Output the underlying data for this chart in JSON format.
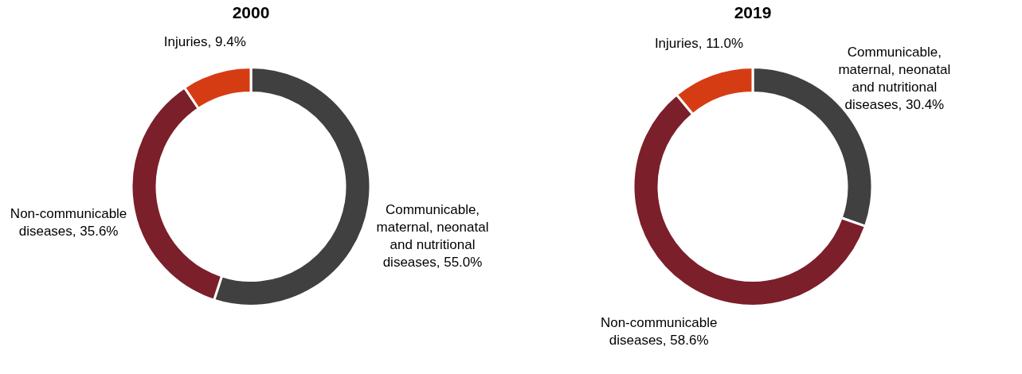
{
  "chart_data": [
    {
      "type": "donut",
      "title": "2000",
      "categories": [
        "Communicable, maternal, neonatal and nutritional diseases",
        "Non-communicable diseases",
        "Injuries"
      ],
      "values": [
        55.0,
        35.6,
        9.4
      ],
      "value_labels": [
        "55.0%",
        "35.6%",
        "9.4%"
      ],
      "colors": [
        "#404040",
        "#7b1f2a",
        "#d63c14"
      ],
      "legend": false
    },
    {
      "type": "donut",
      "title": "2019",
      "categories": [
        "Communicable, maternal, neonatal and nutritional diseases",
        "Non-communicable diseases",
        "Injuries"
      ],
      "values": [
        30.4,
        58.6,
        11.0
      ],
      "value_labels": [
        "30.4%",
        "58.6%",
        "11.0%"
      ],
      "colors": [
        "#404040",
        "#7b1f2a",
        "#d63c14"
      ],
      "legend": false
    }
  ]
}
